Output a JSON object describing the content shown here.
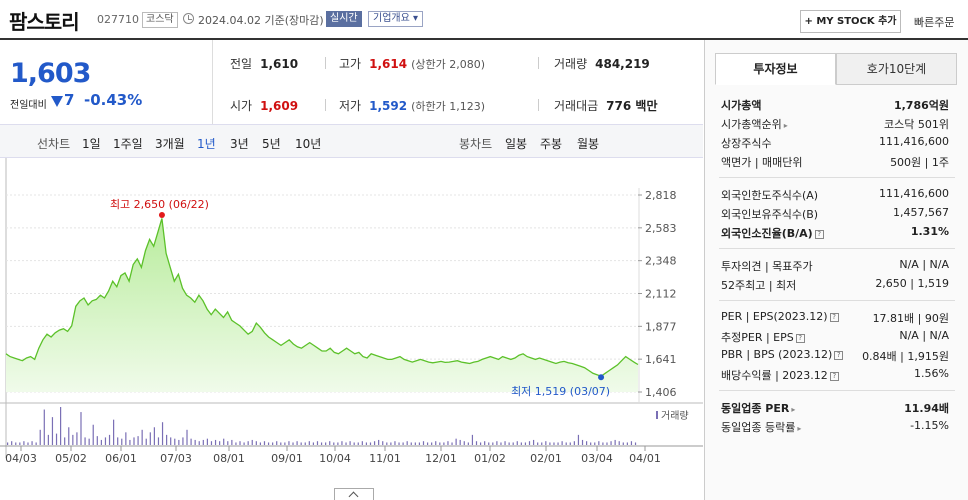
{
  "header": {
    "company": "팜스토리",
    "code": "027710",
    "market": "코스닥",
    "date": "2024.04.02",
    "basis": "기준(장마감)",
    "realtime": "실시간",
    "company_info": "기업개요 ▾",
    "mystock": "+ MY STOCK 추가",
    "quick_order": "빠른주문"
  },
  "price": {
    "current": "1,603",
    "vs_label": "전일대비",
    "change": "7",
    "change_pct": "-0.43%"
  },
  "stats": {
    "prev_label": "전일",
    "prev": "1,610",
    "high_label": "고가",
    "high": "1,614",
    "upper_limit": "(상한가 2,080)",
    "volume_label": "거래량",
    "volume": "484,219",
    "open_label": "시가",
    "open": "1,609",
    "low_label": "저가",
    "low": "1,592",
    "lower_limit": "(하한가 1,123)",
    "amount_label": "거래대금",
    "amount": "776 백만"
  },
  "period_bar": {
    "line_label": "선차트",
    "line_periods": [
      "1일",
      "1주일",
      "3개월",
      "1년",
      "3년",
      "5년",
      "10년"
    ],
    "selected": "1년",
    "candle_label": "봉차트",
    "candle_periods": [
      "일봉",
      "주봉",
      "월봉"
    ]
  },
  "chart_data": {
    "type": "area",
    "y_ticks": [
      "2,818",
      "2,583",
      "2,348",
      "2,112",
      "1,877",
      "1,641",
      "1,406"
    ],
    "ylim": [
      1406,
      2818
    ],
    "x_labels": [
      "04/03",
      "05/02",
      "06/01",
      "07/03",
      "08/01",
      "09/01",
      "10/04",
      "11/01",
      "12/01",
      "01/02",
      "02/01",
      "03/04",
      "04/01"
    ],
    "series": [
      {
        "values": [
          1680,
          1660,
          1650,
          1640,
          1630,
          1650,
          1660,
          1640,
          1720,
          1780,
          1820,
          1800,
          1830,
          1850,
          1860,
          1840,
          1880,
          2020,
          2060,
          2080,
          2030,
          2060,
          2070,
          2100,
          2080,
          2130,
          2200,
          2160,
          2240,
          2260,
          2200,
          2320,
          2360,
          2300,
          2420,
          2500,
          2450,
          2550,
          2650,
          2400,
          2300,
          2200,
          2250,
          2150,
          2100,
          2080,
          2050,
          2100,
          2060,
          2000,
          1960,
          2000,
          1970,
          1940,
          1980,
          1920,
          1900,
          1880,
          1850,
          1820,
          1840,
          1900,
          1870,
          1830,
          1800,
          1780,
          1760,
          1740,
          1760,
          1780,
          1750,
          1730,
          1720,
          1740,
          1760,
          1740,
          1720,
          1700,
          1700,
          1720,
          1690,
          1680,
          1700,
          1720,
          1700,
          1680,
          1690,
          1660,
          1650,
          1680,
          1670,
          1660,
          1650,
          1640,
          1640,
          1650,
          1660,
          1640,
          1630,
          1620,
          1630,
          1640,
          1630,
          1620,
          1615,
          1620,
          1625,
          1618,
          1620,
          1625,
          1630,
          1620,
          1615,
          1610,
          1620,
          1625,
          1640,
          1650,
          1660,
          1650,
          1640,
          1660,
          1650,
          1640,
          1650,
          1670,
          1680,
          1660,
          1650,
          1640,
          1650,
          1640,
          1630,
          1620,
          1610,
          1620,
          1625,
          1615,
          1610,
          1600,
          1590,
          1580,
          1560,
          1540,
          1530,
          1519,
          1540,
          1560,
          1580,
          1600,
          1630,
          1660,
          1640,
          1620,
          1603
        ]
      }
    ],
    "volume_bars": [
      2,
      3,
      2,
      2,
      3,
      2,
      3,
      2,
      12,
      28,
      8,
      22,
      9,
      30,
      6,
      14,
      8,
      10,
      26,
      6,
      5,
      16,
      7,
      4,
      6,
      8,
      20,
      6,
      5,
      10,
      4,
      6,
      7,
      12,
      5,
      10,
      14,
      6,
      18,
      8,
      6,
      5,
      4,
      6,
      12,
      5,
      4,
      3,
      4,
      5,
      3,
      4,
      3,
      5,
      3,
      4,
      2,
      3,
      2,
      3,
      4,
      3,
      2,
      3,
      2,
      2,
      3,
      2,
      2,
      3,
      2,
      3,
      2,
      2,
      3,
      2,
      3,
      2,
      2,
      3,
      2,
      2,
      3,
      2,
      3,
      2,
      2,
      3,
      2,
      2,
      3,
      4,
      3,
      2,
      2,
      3,
      2,
      2,
      3,
      2,
      2,
      2,
      3,
      2,
      2,
      3,
      2,
      2,
      3,
      2,
      5,
      4,
      3,
      2,
      8,
      3,
      2,
      3,
      2,
      2,
      3,
      2,
      3,
      2,
      2,
      3,
      2,
      2,
      3,
      4,
      2,
      2,
      3,
      2,
      2,
      2,
      3,
      2,
      2,
      3,
      8,
      4,
      3,
      2,
      2,
      3,
      2,
      2,
      3,
      4,
      3,
      2,
      2,
      3,
      2
    ],
    "high_marker": {
      "label": "최고 2,650 (06/22)",
      "value": 2650
    },
    "low_marker": {
      "label": "최저 1,519 (03/07)",
      "value": 1519
    },
    "volume_label": "거래량"
  },
  "invest": {
    "tab_on": "투자정보",
    "tab_off": "호가10단계",
    "mktcap_label": "시가총액",
    "mktcap": "1,786억원",
    "rank_label": "시가총액순위",
    "rank": "코스닥 501위",
    "shares_label": "상장주식수",
    "shares": "111,416,600",
    "par_label": "액면가 | 매매단위",
    "par": "500원 | 1주",
    "foreign_limit_label": "외국인한도주식수(A)",
    "foreign_limit": "111,416,600",
    "foreign_hold_label": "외국인보유주식수(B)",
    "foreign_hold": "1,457,567",
    "foreign_ratio_label": "외국인소진율(B/A)",
    "foreign_ratio": "1.31%",
    "opinion_label": "투자의견 | 목표주가",
    "opinion": "N/A | N/A",
    "w52_label": "52주최고 | 최저",
    "w52": "2,650 | 1,519",
    "per_label": "PER | EPS(2023.12)",
    "per": "17.81배 | 90원",
    "est_per_label": "추정PER | EPS",
    "est_per": "N/A | N/A",
    "pbr_label": "PBR | BPS (2023.12)",
    "pbr": "0.84배 | 1,915원",
    "div_label": "배당수익률 | 2023.12",
    "div": "1.56%",
    "ind_per_label": "동일업종 PER",
    "ind_per": "11.94배",
    "ind_rate_label": "동일업종 등락률",
    "ind_rate": "-1.15%"
  }
}
